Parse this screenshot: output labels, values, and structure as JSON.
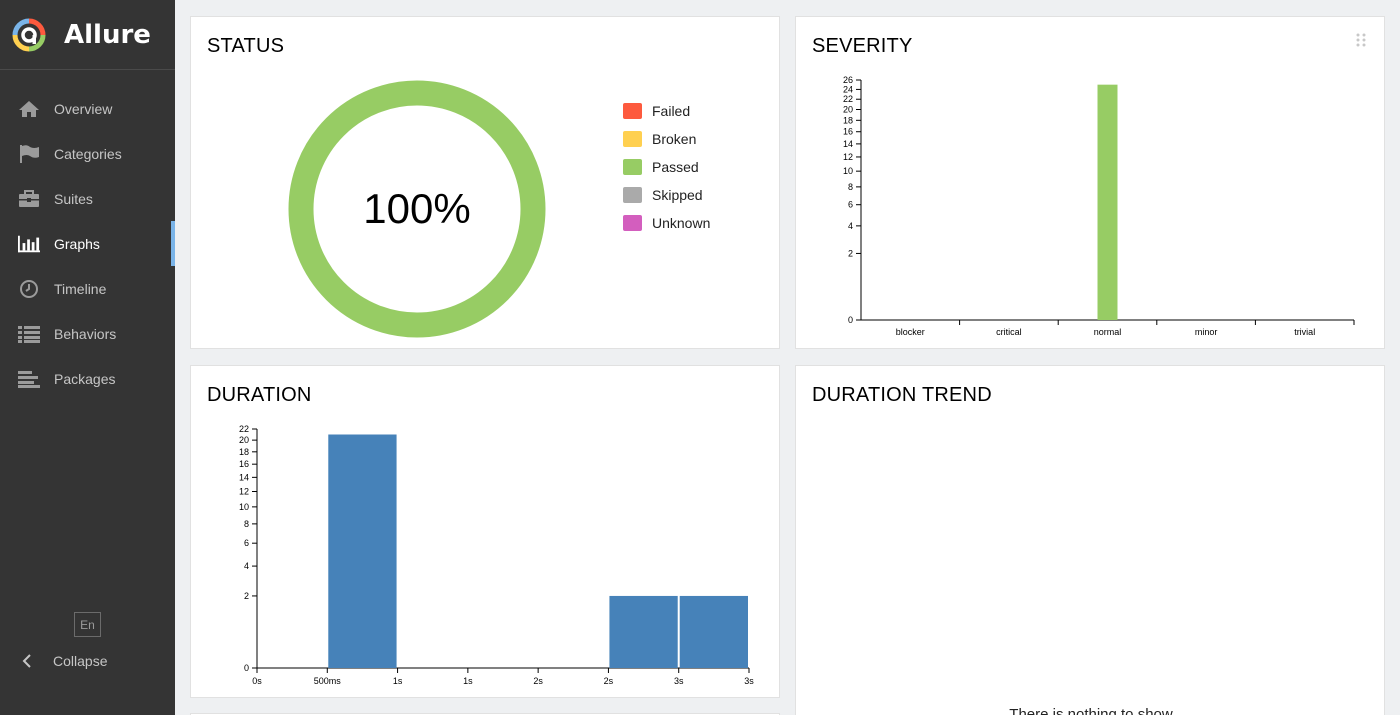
{
  "app": {
    "name": "Allure"
  },
  "sidebar": {
    "items": [
      {
        "id": "overview",
        "label": "Overview",
        "icon": "home-icon",
        "active": false
      },
      {
        "id": "categories",
        "label": "Categories",
        "icon": "flag-icon",
        "active": false
      },
      {
        "id": "suites",
        "label": "Suites",
        "icon": "briefcase-icon",
        "active": false
      },
      {
        "id": "graphs",
        "label": "Graphs",
        "icon": "bar-chart-icon",
        "active": true
      },
      {
        "id": "timeline",
        "label": "Timeline",
        "icon": "clock-icon",
        "active": false
      },
      {
        "id": "behaviors",
        "label": "Behaviors",
        "icon": "list-icon",
        "active": false
      },
      {
        "id": "packages",
        "label": "Packages",
        "icon": "align-left-icon",
        "active": false
      }
    ],
    "language": "En",
    "collapse_label": "Collapse"
  },
  "widgets": {
    "status": {
      "title": "STATUS",
      "percent_label": "100%",
      "passed_fraction": 1.0,
      "legend": [
        {
          "label": "Failed",
          "color": "#fd5a3e"
        },
        {
          "label": "Broken",
          "color": "#ffd050"
        },
        {
          "label": "Passed",
          "color": "#97cc64"
        },
        {
          "label": "Skipped",
          "color": "#aaaaaa"
        },
        {
          "label": "Unknown",
          "color": "#d35ebe"
        }
      ]
    },
    "severity": {
      "title": "SEVERITY"
    },
    "duration": {
      "title": "DURATION"
    },
    "duration_trend": {
      "title": "DURATION TREND",
      "message": "There is nothing to show"
    }
  },
  "chart_data": [
    {
      "type": "bar",
      "title": "SEVERITY",
      "categories": [
        "blocker",
        "critical",
        "normal",
        "minor",
        "trivial"
      ],
      "values": [
        0,
        0,
        25,
        0,
        0
      ],
      "y_ticks": [
        0,
        2,
        4,
        6,
        8,
        10,
        12,
        14,
        16,
        18,
        20,
        22,
        24,
        26
      ],
      "ylim": [
        0,
        26
      ],
      "y_scale": "sqrt",
      "color": "#97cc64"
    },
    {
      "type": "bar",
      "title": "DURATION",
      "x_tick_labels": [
        "0s",
        "500ms",
        "1s",
        "1s",
        "2s",
        "2s",
        "3s",
        "3s"
      ],
      "bins": [
        {
          "from_tick": 1,
          "to_tick": 2,
          "value": 21
        },
        {
          "from_tick": 5,
          "to_tick": 6,
          "value": 2
        },
        {
          "from_tick": 6,
          "to_tick": 7,
          "value": 2
        }
      ],
      "y_ticks": [
        0,
        2,
        4,
        6,
        8,
        10,
        12,
        14,
        16,
        18,
        20,
        22
      ],
      "ylim": [
        0,
        22
      ],
      "y_scale": "sqrt",
      "color": "#4682b9"
    }
  ]
}
